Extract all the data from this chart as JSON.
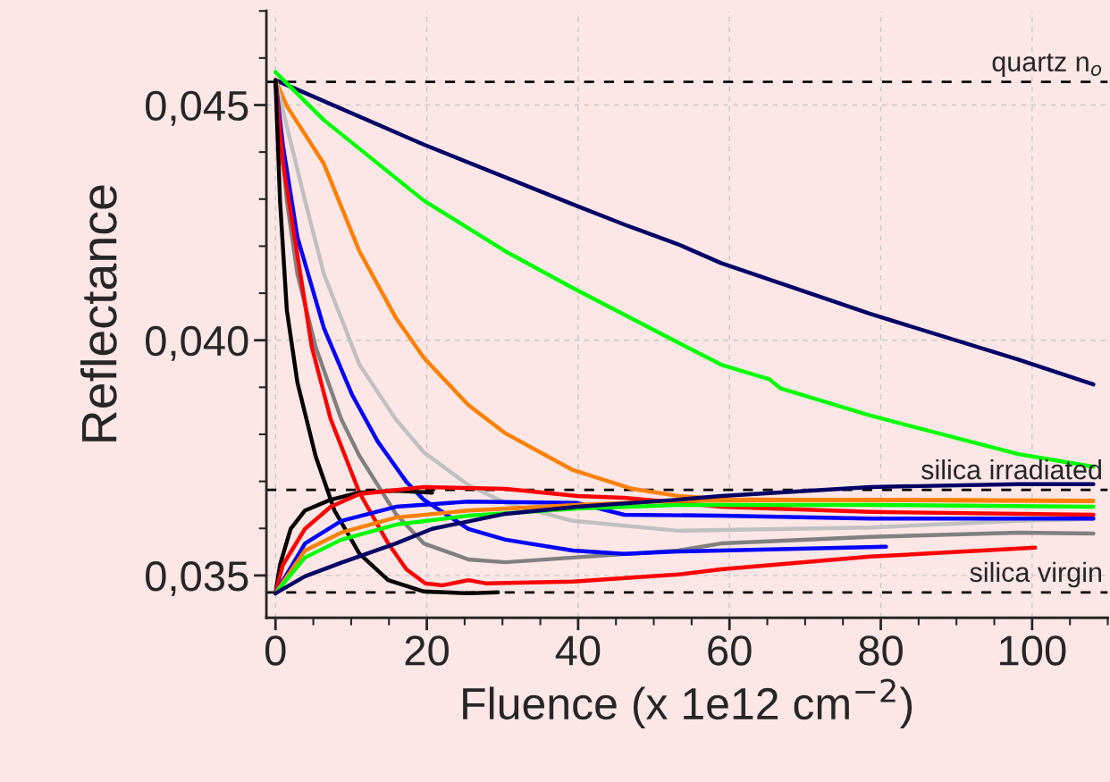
{
  "chart_data": {
    "type": "line",
    "xlabel": "Fluence (x 1e12 cm$^{−2}$)",
    "ylabel": "Reflectance",
    "xlim": [
      -1.2,
      110
    ],
    "ylim": [
      0.0341,
      0.047
    ],
    "xticks": [
      0,
      20,
      40,
      60,
      80,
      100
    ],
    "yticks": [
      {
        "value": 0.035,
        "label": "0,035"
      },
      {
        "value": 0.04,
        "label": "0,040"
      },
      {
        "value": 0.045,
        "label": "0,045"
      }
    ],
    "grid": true,
    "legend": false,
    "line_style": "solid",
    "ref_lines": [
      {
        "axis": "y",
        "value": 0.04549,
        "label": "quartz n$_{o}$",
        "color": "#000000",
        "line_style": "dashed"
      },
      {
        "axis": "y",
        "value": 0.03682,
        "label": "silica irradiated",
        "color": "#000000",
        "line_style": "dashed"
      },
      {
        "axis": "y",
        "value": 0.03464,
        "label": "silica virgin",
        "color": "#000000",
        "line_style": "dashed"
      }
    ],
    "series": [
      {
        "color": "#000066",
        "x": [
          0,
          19.6,
          39.3,
          46.1,
          53.2,
          58.9,
          78.6,
          98.2,
          108.1
        ],
        "values": [
          0.04553,
          0.04416,
          0.04289,
          0.04246,
          0.04204,
          0.04164,
          0.04056,
          0.03959,
          0.03906
        ]
      },
      {
        "color": "#00ff00",
        "x": [
          0,
          6.4,
          19.6,
          30.4,
          39.3,
          53.2,
          58.9,
          65.3,
          66.7,
          78.6,
          98.2,
          108.1
        ],
        "values": [
          0.0457,
          0.04468,
          0.04297,
          0.04189,
          0.04111,
          0.03995,
          0.03948,
          0.03917,
          0.03898,
          0.0384,
          0.03758,
          0.03731
        ]
      },
      {
        "color": "#ff8000",
        "x": [
          0,
          1.5,
          6.4,
          11.1,
          15.9,
          19.6,
          25.5,
          30.4,
          39.3,
          47.2,
          53.2,
          60,
          80,
          108
        ],
        "values": [
          0.04553,
          0.04498,
          0.04375,
          0.04189,
          0.04048,
          0.03963,
          0.03862,
          0.03802,
          0.03724,
          0.03684,
          0.03669,
          0.03662,
          0.0366,
          0.03658
        ]
      },
      {
        "color": "#c0c0c0",
        "x": [
          0,
          3.9,
          6.4,
          11.1,
          15.9,
          19.6,
          25.5,
          30.4,
          39.3,
          53.2,
          78.6,
          98.2,
          108.1
        ],
        "values": [
          0.04553,
          0.04297,
          0.04141,
          0.03948,
          0.03832,
          0.03762,
          0.03692,
          0.03654,
          0.03616,
          0.03595,
          0.03602,
          0.03616,
          0.0362
        ]
      },
      {
        "color": "#808080",
        "x": [
          0,
          0.6,
          1.5,
          2.9,
          5.3,
          8.7,
          11.1,
          15.9,
          19.6,
          25.5,
          30.4,
          39.3,
          53.2,
          58.9,
          78.6,
          98.2,
          108.1
        ],
        "values": [
          0.04553,
          0.04451,
          0.04297,
          0.04141,
          0.03986,
          0.03832,
          0.03754,
          0.03631,
          0.03568,
          0.03534,
          0.03528,
          0.03538,
          0.03553,
          0.03568,
          0.03582,
          0.03591,
          0.03589
        ]
      },
      {
        "color": "#0000ff",
        "x": [
          0,
          1,
          2.9,
          6.4,
          10.1,
          13.5,
          17.3,
          19.6,
          25.5,
          30.4,
          39.3,
          46.1,
          53.2,
          58.9,
          80.7
        ],
        "values": [
          0.04553,
          0.04413,
          0.04219,
          0.04026,
          0.03885,
          0.03785,
          0.03699,
          0.03661,
          0.03599,
          0.03576,
          0.03553,
          0.03546,
          0.03551,
          0.03553,
          0.03561
        ]
      },
      {
        "color": "#ff0000",
        "x": [
          0,
          1,
          2.9,
          4.8,
          7.3,
          11.1,
          14.9,
          17.3,
          19.8,
          22.1,
          25.5,
          27.9,
          39.3,
          53.2,
          58.9,
          78.6,
          100.4
        ],
        "values": [
          0.04553,
          0.04375,
          0.04181,
          0.03986,
          0.03832,
          0.03676,
          0.03568,
          0.03513,
          0.03483,
          0.03479,
          0.0349,
          0.03483,
          0.03487,
          0.03502,
          0.03513,
          0.0354,
          0.03559
        ]
      },
      {
        "color": "#000000",
        "x": [
          0,
          0.6,
          1.5,
          2.9,
          5.3,
          7.8,
          11.1,
          14.9,
          19.6,
          25.5,
          29.4
        ],
        "values": [
          0.04553,
          0.04297,
          0.04064,
          0.0391,
          0.03754,
          0.03638,
          0.03546,
          0.0349,
          0.03466,
          0.03462,
          0.03464
        ]
      },
      {
        "color": "#000000",
        "x": [
          0,
          0.6,
          2,
          3.9,
          7.3,
          11.1,
          15.9,
          20.7
        ],
        "values": [
          0.03462,
          0.03523,
          0.03599,
          0.03638,
          0.03661,
          0.03676,
          0.0368,
          0.03676
        ]
      },
      {
        "color": "#ff0000",
        "x": [
          0,
          1,
          3.9,
          7.3,
          11.1,
          19.6,
          30.4,
          39.9,
          46.1,
          58.9,
          78.6,
          108.1
        ],
        "values": [
          0.03462,
          0.03523,
          0.03599,
          0.03646,
          0.03673,
          0.03688,
          0.03684,
          0.03669,
          0.03665,
          0.03646,
          0.03635,
          0.03629
        ]
      },
      {
        "color": "#0000ff",
        "x": [
          0,
          3.9,
          8.7,
          15.9,
          25.5,
          39.9,
          46.1,
          58.9,
          78.6,
          108.1
        ],
        "values": [
          0.03462,
          0.03568,
          0.03616,
          0.03646,
          0.03657,
          0.03654,
          0.03629,
          0.03627,
          0.03621,
          0.03621
        ]
      },
      {
        "color": "#ff8000",
        "x": [
          0,
          3.9,
          8.7,
          15.9,
          25.5,
          39.9,
          53.2,
          78.6,
          108.1
        ],
        "values": [
          0.03462,
          0.03553,
          0.03591,
          0.03623,
          0.03638,
          0.0365,
          0.03659,
          0.03661,
          0.03659
        ]
      },
      {
        "color": "#00ff00",
        "x": [
          0,
          3.9,
          8.7,
          15.9,
          25.5,
          39.9,
          53.2,
          78.6,
          108.1
        ],
        "values": [
          0.03462,
          0.03538,
          0.03576,
          0.03608,
          0.03627,
          0.03642,
          0.0365,
          0.0365,
          0.03646
        ]
      },
      {
        "color": "#000066",
        "x": [
          0,
          3.9,
          8.7,
          15.9,
          20.7,
          30.4,
          39.9,
          53.2,
          58.9,
          78.6,
          98.2,
          108.1
        ],
        "values": [
          0.03462,
          0.03498,
          0.03527,
          0.03568,
          0.03599,
          0.03631,
          0.03646,
          0.03661,
          0.03669,
          0.03688,
          0.03694,
          0.03694
        ]
      }
    ]
  }
}
